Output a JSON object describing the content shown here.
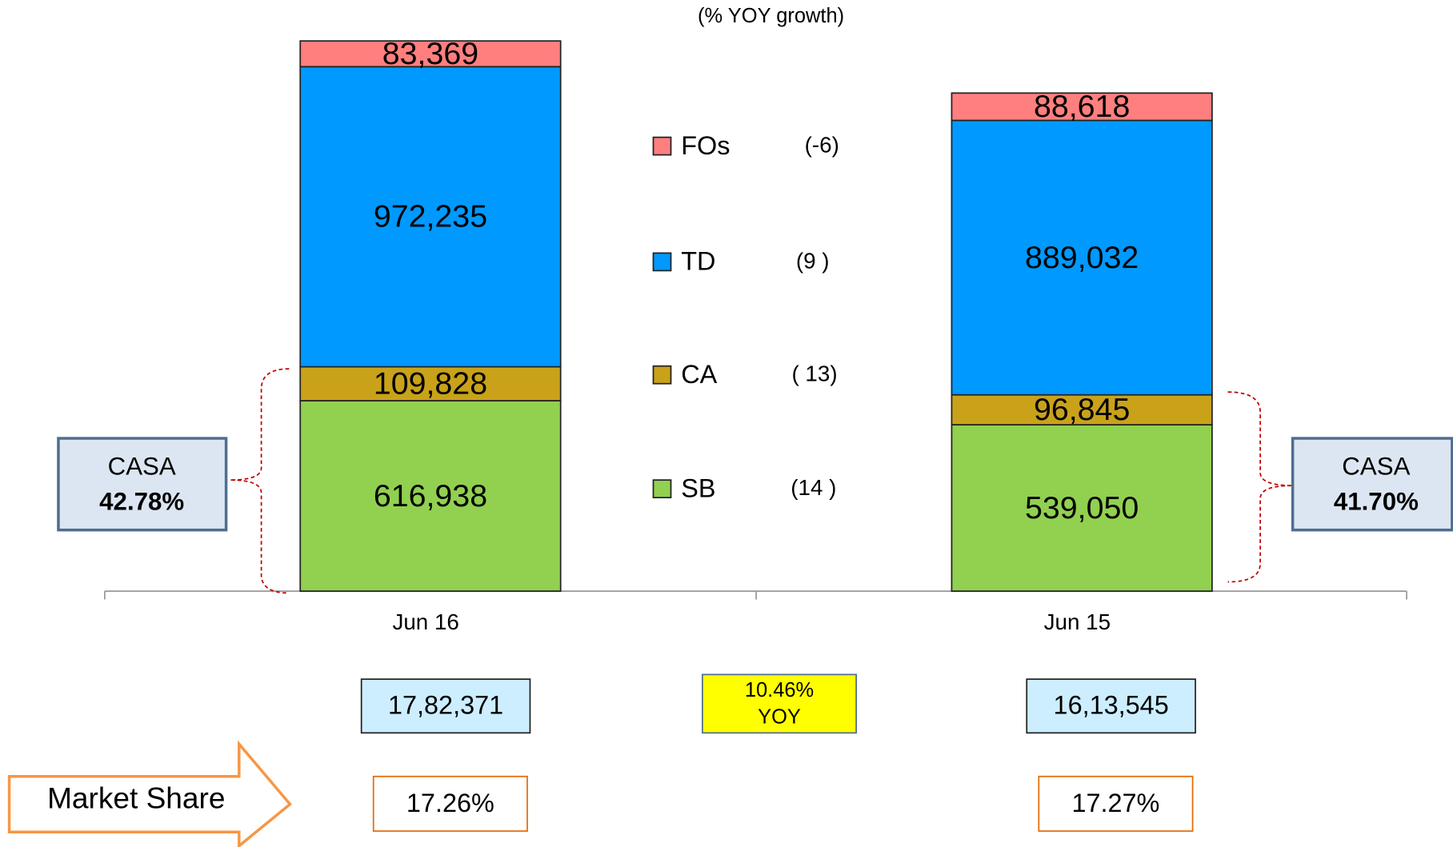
{
  "chart_data": {
    "type": "bar",
    "stacked": true,
    "subtitle": "(% YOY growth)",
    "categories": [
      "Jun 16",
      "Jun 15"
    ],
    "series": [
      {
        "name": "SB",
        "color": "#92d050",
        "growth": "(14 )",
        "values": [
          616938,
          539050
        ],
        "value_labels": [
          "616,938",
          "539,050"
        ]
      },
      {
        "name": "CA",
        "color": "#c9a21a",
        "growth": "( 13)",
        "values": [
          109828,
          96845
        ],
        "value_labels": [
          "109,828",
          "96,845"
        ]
      },
      {
        "name": "TD",
        "color": "#0099ff",
        "growth": "(9 )",
        "values": [
          972235,
          889032
        ],
        "value_labels": [
          "972,235",
          "889,032"
        ]
      },
      {
        "name": "FOs",
        "color": "#ff7f7f",
        "growth": "(-6)",
        "values": [
          83369,
          88618
        ],
        "value_labels": [
          "83,369",
          "88,618"
        ]
      }
    ],
    "casa_label": "CASA",
    "casa": [
      "42.78%",
      "41.70%"
    ],
    "totals": [
      "17,82,371",
      "16,13,545"
    ],
    "yoy": [
      "10.46%",
      "YOY"
    ],
    "market_share_label": "Market Share",
    "market_share": [
      "17.26%",
      "17.27%"
    ]
  }
}
